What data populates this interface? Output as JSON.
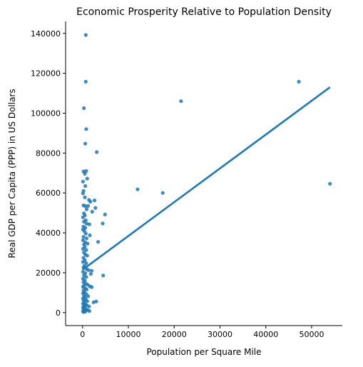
{
  "chart_data": {
    "type": "scatter",
    "title": "Economic Prosperity Relative to Population Density",
    "xlabel": "Population per Square Mile",
    "ylabel": "Real GDP per Capita (PPP) in US Dollars",
    "xlim": [
      -3700,
      56700
    ],
    "ylim": [
      -6500,
      146000
    ],
    "xticks": [
      0,
      10000,
      20000,
      30000,
      40000,
      50000
    ],
    "yticks": [
      0,
      20000,
      40000,
      60000,
      80000,
      100000,
      120000,
      140000
    ],
    "xtick_labels": [
      "0",
      "10000",
      "20000",
      "30000",
      "40000",
      "50000"
    ],
    "ytick_labels": [
      "0",
      "20000",
      "40000",
      "60000",
      "80000",
      "100000",
      "120000",
      "140000"
    ],
    "grid": false,
    "point_color": "#1f77b4",
    "line_color": "#1f77b4",
    "regression_line": {
      "x": [
        0,
        54000
      ],
      "y": [
        21500,
        113000
      ]
    },
    "points": [
      {
        "x": 700,
        "y": 139200
      },
      {
        "x": 700,
        "y": 115800
      },
      {
        "x": 300,
        "y": 102500
      },
      {
        "x": 800,
        "y": 92000
      },
      {
        "x": 600,
        "y": 84700
      },
      {
        "x": 3100,
        "y": 80500
      },
      {
        "x": 200,
        "y": 70800
      },
      {
        "x": 800,
        "y": 71000
      },
      {
        "x": 500,
        "y": 69600
      },
      {
        "x": 1000,
        "y": 67200
      },
      {
        "x": 100,
        "y": 65700
      },
      {
        "x": 600,
        "y": 63500
      },
      {
        "x": 200,
        "y": 61000
      },
      {
        "x": 100,
        "y": 59800
      },
      {
        "x": 500,
        "y": 57800
      },
      {
        "x": 1400,
        "y": 56500
      },
      {
        "x": 2600,
        "y": 56300
      },
      {
        "x": 1700,
        "y": 55600
      },
      {
        "x": 200,
        "y": 53800
      },
      {
        "x": 600,
        "y": 53400
      },
      {
        "x": 1200,
        "y": 53500
      },
      {
        "x": 2800,
        "y": 52500
      },
      {
        "x": 900,
        "y": 51800
      },
      {
        "x": 2100,
        "y": 50600
      },
      {
        "x": 300,
        "y": 49800
      },
      {
        "x": 500,
        "y": 48800
      },
      {
        "x": 100,
        "y": 47800
      },
      {
        "x": 4900,
        "y": 49200
      },
      {
        "x": 700,
        "y": 46300
      },
      {
        "x": 300,
        "y": 45600
      },
      {
        "x": 900,
        "y": 44600
      },
      {
        "x": 1500,
        "y": 44300
      },
      {
        "x": 4400,
        "y": 44700
      },
      {
        "x": 200,
        "y": 43100
      },
      {
        "x": 600,
        "y": 42500
      },
      {
        "x": 100,
        "y": 41700
      },
      {
        "x": 400,
        "y": 40800
      },
      {
        "x": 700,
        "y": 39600
      },
      {
        "x": 1600,
        "y": 38800
      },
      {
        "x": 200,
        "y": 38000
      },
      {
        "x": 900,
        "y": 37200
      },
      {
        "x": 100,
        "y": 36300
      },
      {
        "x": 600,
        "y": 35200
      },
      {
        "x": 3400,
        "y": 35500
      },
      {
        "x": 300,
        "y": 34200
      },
      {
        "x": 1100,
        "y": 34600
      },
      {
        "x": 500,
        "y": 33000
      },
      {
        "x": 100,
        "y": 32000
      },
      {
        "x": 800,
        "y": 31400
      },
      {
        "x": 300,
        "y": 30200
      },
      {
        "x": 600,
        "y": 29200
      },
      {
        "x": 1000,
        "y": 28600
      },
      {
        "x": 200,
        "y": 27500
      },
      {
        "x": 500,
        "y": 26300
      },
      {
        "x": 100,
        "y": 25400
      },
      {
        "x": 800,
        "y": 24800
      },
      {
        "x": 400,
        "y": 23500
      },
      {
        "x": 200,
        "y": 22600
      },
      {
        "x": 900,
        "y": 21800
      },
      {
        "x": 1300,
        "y": 21300
      },
      {
        "x": 2000,
        "y": 21000
      },
      {
        "x": 100,
        "y": 20500
      },
      {
        "x": 600,
        "y": 19800
      },
      {
        "x": 1800,
        "y": 19400
      },
      {
        "x": 4500,
        "y": 18600
      },
      {
        "x": 300,
        "y": 18700
      },
      {
        "x": 800,
        "y": 17900
      },
      {
        "x": 100,
        "y": 17000
      },
      {
        "x": 500,
        "y": 16100
      },
      {
        "x": 200,
        "y": 15300
      },
      {
        "x": 700,
        "y": 14600
      },
      {
        "x": 1100,
        "y": 14000
      },
      {
        "x": 300,
        "y": 13600
      },
      {
        "x": 1600,
        "y": 13200
      },
      {
        "x": 2000,
        "y": 12800
      },
      {
        "x": 100,
        "y": 12900
      },
      {
        "x": 600,
        "y": 12200
      },
      {
        "x": 900,
        "y": 11600
      },
      {
        "x": 200,
        "y": 11100
      },
      {
        "x": 400,
        "y": 10300
      },
      {
        "x": 100,
        "y": 9700
      },
      {
        "x": 800,
        "y": 9300
      },
      {
        "x": 300,
        "y": 8600
      },
      {
        "x": 1200,
        "y": 8200
      },
      {
        "x": 500,
        "y": 7600
      },
      {
        "x": 100,
        "y": 7100
      },
      {
        "x": 700,
        "y": 6600
      },
      {
        "x": 200,
        "y": 6100
      },
      {
        "x": 1000,
        "y": 5700
      },
      {
        "x": 2400,
        "y": 5200
      },
      {
        "x": 3000,
        "y": 5600
      },
      {
        "x": 400,
        "y": 5000
      },
      {
        "x": 100,
        "y": 4500
      },
      {
        "x": 600,
        "y": 4000
      },
      {
        "x": 900,
        "y": 3700
      },
      {
        "x": 300,
        "y": 3300
      },
      {
        "x": 1400,
        "y": 3100
      },
      {
        "x": 100,
        "y": 2700
      },
      {
        "x": 500,
        "y": 2300
      },
      {
        "x": 200,
        "y": 1900
      },
      {
        "x": 800,
        "y": 1600
      },
      {
        "x": 1100,
        "y": 1300
      },
      {
        "x": 300,
        "y": 1000
      },
      {
        "x": 100,
        "y": 700
      },
      {
        "x": 600,
        "y": 500
      },
      {
        "x": 1500,
        "y": 800
      },
      {
        "x": 200,
        "y": 300
      },
      {
        "x": 12000,
        "y": 61800
      },
      {
        "x": 17500,
        "y": 60000
      },
      {
        "x": 21500,
        "y": 106000
      },
      {
        "x": 47200,
        "y": 115800
      },
      {
        "x": 54000,
        "y": 64600
      }
    ]
  }
}
